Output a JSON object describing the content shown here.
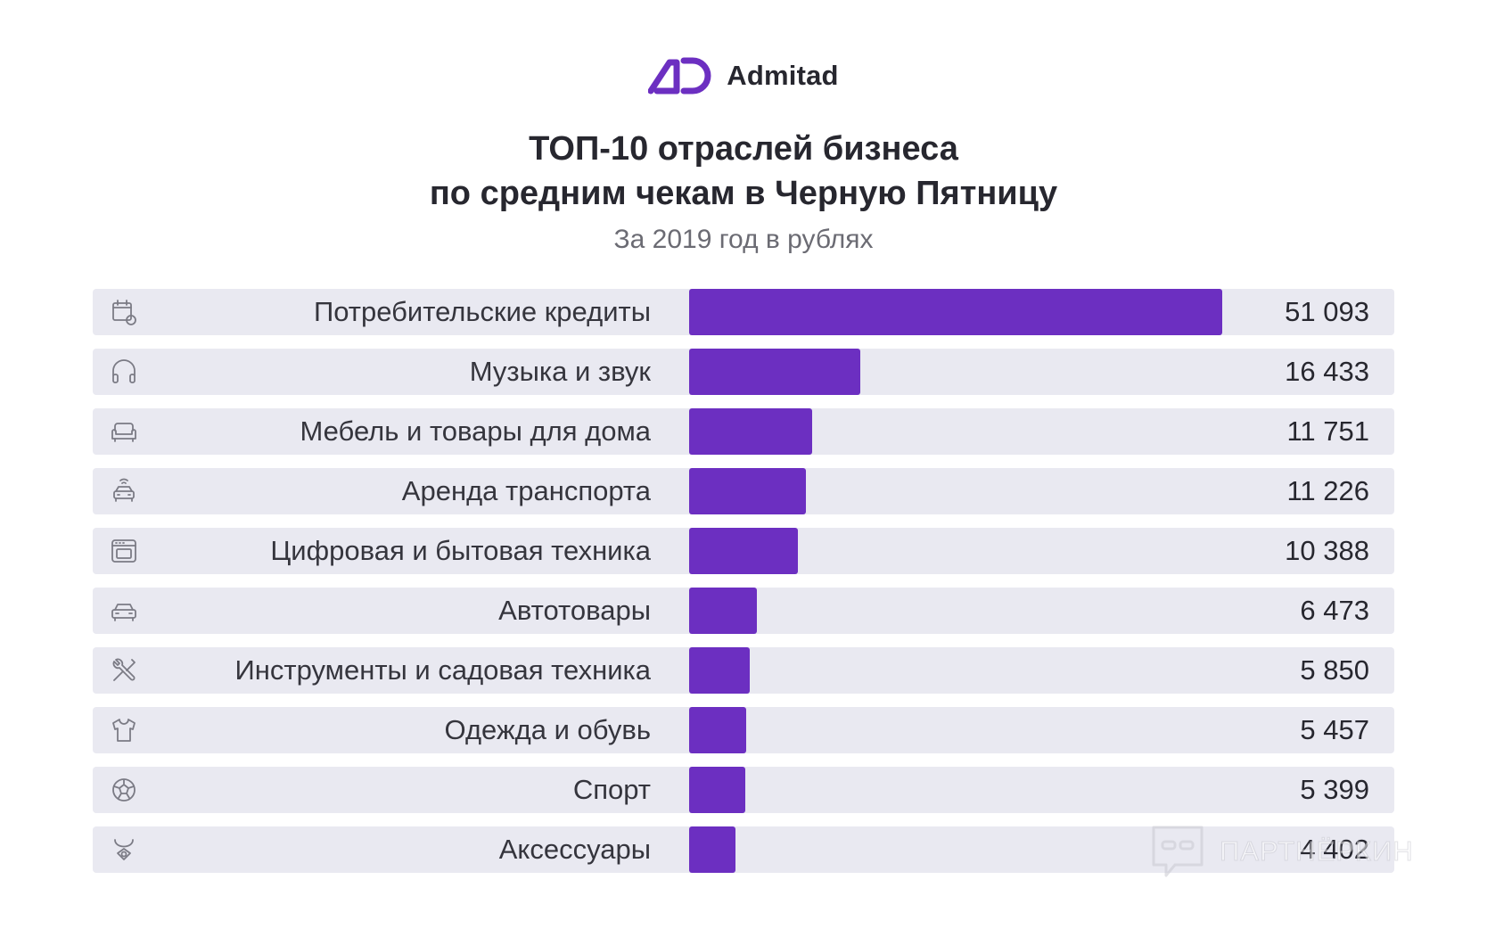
{
  "brand": {
    "name": "Admitad",
    "accent": "#6c2fc1",
    "text_color": "#27272f"
  },
  "header": {
    "title_line1": "ТОП-10 отраслей бизнеса",
    "title_line2": "по средним чекам в Черную Пятницу",
    "subtitle": "За 2019 год в рублях"
  },
  "chart_data": {
    "type": "bar",
    "orientation": "horizontal",
    "title": "ТОП-10 отраслей бизнеса по средним чекам в Черную Пятницу",
    "subtitle": "За 2019 год в рублях",
    "categories": [
      "Потребительские кредиты",
      "Музыка и звук",
      "Мебель и товары для дома",
      "Аренда транспорта",
      "Цифровая и бытовая техника",
      "Автотовары",
      "Инструменты и садовая техника",
      "Одежда и обувь",
      "Спорт",
      "Аксессуары"
    ],
    "values": [
      51093,
      16433,
      11751,
      11226,
      10388,
      6473,
      5850,
      5457,
      5399,
      4402
    ],
    "value_labels": [
      "51 093",
      "16 433",
      "11 751",
      "11 226",
      "10 388",
      "6 473",
      "5 850",
      "5 457",
      "5 399",
      "4 402"
    ],
    "icons": [
      "credit-icon",
      "headphones-icon",
      "sofa-icon",
      "taxi-icon",
      "oven-icon",
      "car-icon",
      "tools-icon",
      "shirt-icon",
      "ball-icon",
      "necklace-icon"
    ],
    "xlim": [
      0,
      51093
    ],
    "bar_color": "#6c2fc1",
    "row_background": "#e9e9f1",
    "grid": false,
    "legend": "none"
  },
  "watermark": {
    "text": "ПАРТНЁРКИН"
  }
}
